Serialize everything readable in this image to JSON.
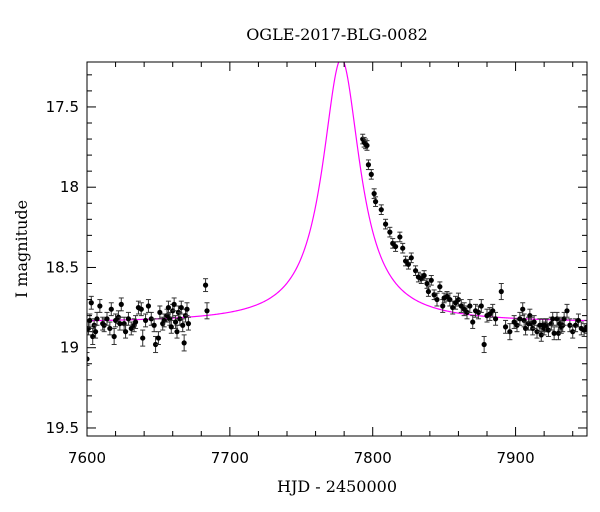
{
  "chart_data": {
    "type": "scatter",
    "title": "OGLE-2017-BLG-0082",
    "xlabel": "HJD - 2450000",
    "ylabel": "I magnitude",
    "xlim": [
      7600,
      7950
    ],
    "ylim": [
      19.55,
      17.22
    ],
    "y_inverted": true,
    "grid": false,
    "x_ticks": [
      7600,
      7700,
      7800,
      7900
    ],
    "x_tick_labels": [
      "7600",
      "7700",
      "7800",
      "7900"
    ],
    "y_ticks": [
      17.5,
      18,
      18.5,
      19,
      19.5
    ],
    "y_tick_labels": [
      "17.5",
      "18",
      "18.5",
      "19",
      "19.5"
    ],
    "colors": {
      "model": "#ff00ff",
      "points": "#000000"
    },
    "model": {
      "baseline_mag": 18.845,
      "t0": 7778,
      "peak_mag": 17.2,
      "tau": 16
    },
    "series": [
      {
        "points": [
          [
            7600,
            19.07,
            0.04
          ],
          [
            7601,
            18.88,
            0.04
          ],
          [
            7602,
            18.83,
            0.04
          ],
          [
            7603,
            18.72,
            0.04
          ],
          [
            7604,
            18.93,
            0.05
          ],
          [
            7605,
            18.86,
            0.04
          ],
          [
            7606,
            18.9,
            0.04
          ],
          [
            7607,
            18.82,
            0.04
          ],
          [
            7609,
            18.74,
            0.04
          ],
          [
            7611,
            18.85,
            0.04
          ],
          [
            7612,
            18.86,
            0.04
          ],
          [
            7614,
            18.82,
            0.04
          ],
          [
            7616,
            18.88,
            0.04
          ],
          [
            7617,
            18.76,
            0.04
          ],
          [
            7619,
            18.93,
            0.05
          ],
          [
            7620,
            18.83,
            0.04
          ],
          [
            7622,
            18.81,
            0.04
          ],
          [
            7623,
            18.85,
            0.04
          ],
          [
            7624,
            18.73,
            0.04
          ],
          [
            7626,
            18.85,
            0.04
          ],
          [
            7627,
            18.9,
            0.04
          ],
          [
            7629,
            18.82,
            0.04
          ],
          [
            7631,
            18.88,
            0.04
          ],
          [
            7633,
            18.86,
            0.04
          ],
          [
            7634,
            18.84,
            0.04
          ],
          [
            7636,
            18.75,
            0.04
          ],
          [
            7638,
            18.76,
            0.04
          ],
          [
            7639,
            18.94,
            0.05
          ],
          [
            7641,
            18.83,
            0.04
          ],
          [
            7643,
            18.74,
            0.04
          ],
          [
            7645,
            18.82,
            0.04
          ],
          [
            7647,
            18.86,
            0.04
          ],
          [
            7648,
            18.98,
            0.05
          ],
          [
            7650,
            18.94,
            0.04
          ],
          [
            7651,
            18.78,
            0.04
          ],
          [
            7653,
            18.85,
            0.04
          ],
          [
            7654,
            18.83,
            0.04
          ],
          [
            7656,
            18.8,
            0.04
          ],
          [
            7657,
            18.75,
            0.04
          ],
          [
            7658,
            18.82,
            0.04
          ],
          [
            7659,
            18.87,
            0.04
          ],
          [
            7660,
            18.77,
            0.04
          ],
          [
            7661,
            18.73,
            0.04
          ],
          [
            7662,
            18.84,
            0.04
          ],
          [
            7663,
            18.9,
            0.04
          ],
          [
            7664,
            18.78,
            0.04
          ],
          [
            7665,
            18.82,
            0.04
          ],
          [
            7666,
            18.75,
            0.04
          ],
          [
            7667,
            18.86,
            0.04
          ],
          [
            7668,
            18.97,
            0.05
          ],
          [
            7669,
            18.8,
            0.04
          ],
          [
            7670,
            18.76,
            0.04
          ],
          [
            7671,
            18.85,
            0.04
          ],
          [
            7683,
            18.61,
            0.04
          ],
          [
            7684,
            18.77,
            0.05
          ],
          [
            7793,
            17.7,
            0.03
          ],
          [
            7794,
            17.72,
            0.03
          ],
          [
            7795,
            17.73,
            0.03
          ],
          [
            7796,
            17.74,
            0.03
          ],
          [
            7797,
            17.86,
            0.03
          ],
          [
            7799,
            17.92,
            0.03
          ],
          [
            7801,
            18.04,
            0.03
          ],
          [
            7802,
            18.09,
            0.03
          ],
          [
            7806,
            18.14,
            0.03
          ],
          [
            7809,
            18.23,
            0.03
          ],
          [
            7812,
            18.28,
            0.03
          ],
          [
            7814,
            18.35,
            0.03
          ],
          [
            7816,
            18.37,
            0.03
          ],
          [
            7819,
            18.31,
            0.03
          ],
          [
            7821,
            18.38,
            0.03
          ],
          [
            7823,
            18.46,
            0.03
          ],
          [
            7825,
            18.48,
            0.03
          ],
          [
            7827,
            18.44,
            0.03
          ],
          [
            7830,
            18.52,
            0.03
          ],
          [
            7832,
            18.56,
            0.03
          ],
          [
            7834,
            18.57,
            0.03
          ],
          [
            7836,
            18.55,
            0.03
          ],
          [
            7838,
            18.6,
            0.03
          ],
          [
            7839,
            18.65,
            0.03
          ],
          [
            7841,
            18.58,
            0.03
          ],
          [
            7843,
            18.67,
            0.03
          ],
          [
            7845,
            18.7,
            0.04
          ],
          [
            7847,
            18.62,
            0.03
          ],
          [
            7849,
            18.74,
            0.04
          ],
          [
            7850,
            18.69,
            0.03
          ],
          [
            7852,
            18.68,
            0.03
          ],
          [
            7854,
            18.7,
            0.04
          ],
          [
            7856,
            18.75,
            0.04
          ],
          [
            7858,
            18.72,
            0.04
          ],
          [
            7860,
            18.7,
            0.04
          ],
          [
            7862,
            18.74,
            0.04
          ],
          [
            7864,
            18.76,
            0.04
          ],
          [
            7866,
            18.78,
            0.04
          ],
          [
            7868,
            18.74,
            0.04
          ],
          [
            7870,
            18.84,
            0.04
          ],
          [
            7872,
            18.77,
            0.04
          ],
          [
            7874,
            18.78,
            0.04
          ],
          [
            7876,
            18.74,
            0.04
          ],
          [
            7878,
            18.98,
            0.05
          ],
          [
            7880,
            18.8,
            0.04
          ],
          [
            7882,
            18.79,
            0.04
          ],
          [
            7884,
            18.77,
            0.04
          ],
          [
            7886,
            18.82,
            0.04
          ],
          [
            7890,
            18.65,
            0.05
          ],
          [
            7893,
            18.87,
            0.04
          ],
          [
            7896,
            18.9,
            0.05
          ],
          [
            7899,
            18.84,
            0.04
          ],
          [
            7901,
            18.86,
            0.04
          ],
          [
            7903,
            18.82,
            0.04
          ],
          [
            7905,
            18.76,
            0.04
          ],
          [
            7906,
            18.83,
            0.04
          ],
          [
            7907,
            18.88,
            0.04
          ],
          [
            7909,
            18.85,
            0.04
          ],
          [
            7910,
            18.8,
            0.04
          ],
          [
            7911,
            18.85,
            0.04
          ],
          [
            7912,
            18.88,
            0.04
          ],
          [
            7913,
            18.84,
            0.04
          ],
          [
            7915,
            18.9,
            0.04
          ],
          [
            7917,
            18.86,
            0.04
          ],
          [
            7918,
            18.92,
            0.04
          ],
          [
            7919,
            18.86,
            0.04
          ],
          [
            7920,
            18.88,
            0.04
          ],
          [
            7921,
            18.86,
            0.04
          ],
          [
            7922,
            18.86,
            0.04
          ],
          [
            7923,
            18.89,
            0.04
          ],
          [
            7925,
            18.85,
            0.04
          ],
          [
            7926,
            18.82,
            0.04
          ],
          [
            7927,
            18.91,
            0.04
          ],
          [
            7929,
            18.82,
            0.04
          ],
          [
            7930,
            18.91,
            0.04
          ],
          [
            7931,
            18.85,
            0.04
          ],
          [
            7932,
            18.87,
            0.04
          ],
          [
            7933,
            18.86,
            0.04
          ],
          [
            7934,
            18.82,
            0.04
          ],
          [
            7936,
            18.77,
            0.04
          ],
          [
            7938,
            18.86,
            0.04
          ],
          [
            7940,
            18.9,
            0.04
          ],
          [
            7942,
            18.86,
            0.04
          ],
          [
            7944,
            18.83,
            0.04
          ],
          [
            7946,
            18.88,
            0.04
          ],
          [
            7948,
            18.89,
            0.04
          ],
          [
            7950,
            18.87,
            0.04
          ]
        ]
      }
    ]
  }
}
